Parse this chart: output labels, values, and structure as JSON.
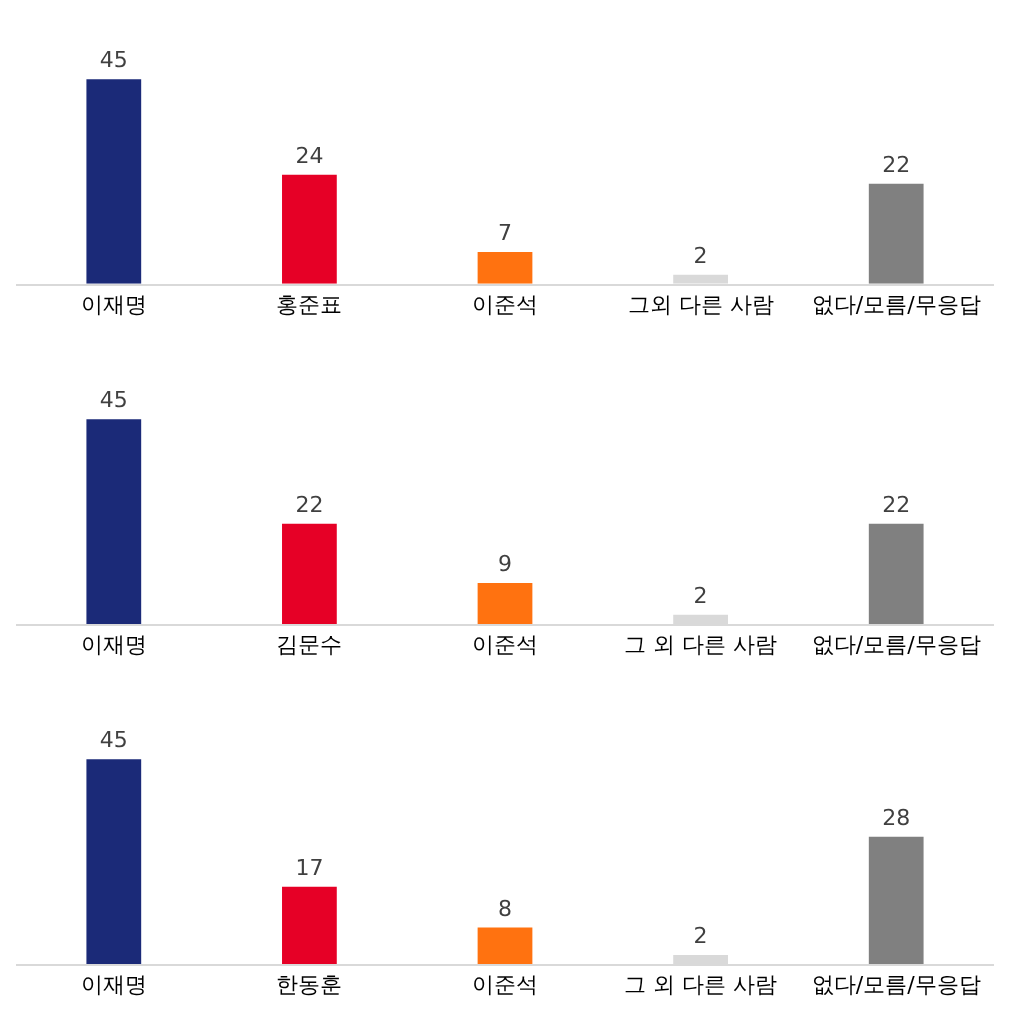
{
  "chart_data": [
    {
      "type": "bar",
      "categories": [
        "이재명",
        "홍준표",
        "이준석",
        "그외 다른 사람",
        "없다/모름/무응답"
      ],
      "values": [
        45,
        24,
        7,
        2,
        22
      ],
      "colors": [
        "#1b2a78",
        "#e60026",
        "#ff7210",
        "#d9d9d9",
        "#808080"
      ],
      "data_labels": true
    },
    {
      "type": "bar",
      "categories": [
        "이재명",
        "김문수",
        "이준석",
        "그 외 다른 사람",
        "없다/모름/무응답"
      ],
      "values": [
        45,
        22,
        9,
        2,
        22
      ],
      "colors": [
        "#1b2a78",
        "#e60026",
        "#ff7210",
        "#d9d9d9",
        "#808080"
      ],
      "data_labels": true
    },
    {
      "type": "bar",
      "categories": [
        "이재명",
        "한동훈",
        "이준석",
        "그 외 다른 사람",
        "없다/모름/무응답"
      ],
      "values": [
        45,
        17,
        8,
        2,
        28
      ],
      "colors": [
        "#1b2a78",
        "#e60026",
        "#ff7210",
        "#d9d9d9",
        "#808080"
      ],
      "data_labels": true
    }
  ]
}
